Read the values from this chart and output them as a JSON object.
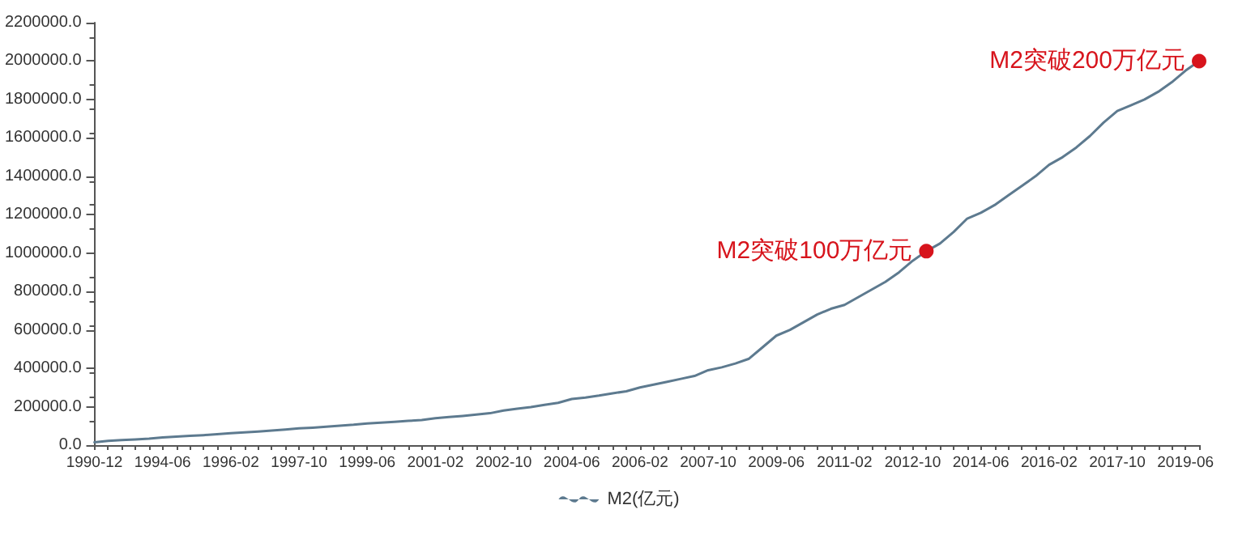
{
  "chart_data": {
    "type": "line",
    "categories": [
      "1990-12",
      null,
      null,
      null,
      null,
      "1994-06",
      null,
      null,
      null,
      null,
      "1996-02",
      null,
      null,
      null,
      null,
      "1997-10",
      null,
      null,
      null,
      null,
      "1999-06",
      null,
      null,
      null,
      null,
      "2001-02",
      null,
      null,
      null,
      null,
      "2002-10",
      null,
      null,
      null,
      null,
      "2004-06",
      null,
      null,
      null,
      null,
      "2006-02",
      null,
      null,
      null,
      null,
      "2007-10",
      null,
      null,
      null,
      null,
      "2009-06",
      null,
      null,
      null,
      null,
      "2011-02",
      null,
      null,
      null,
      null,
      "2012-10",
      null,
      null,
      null,
      null,
      "2014-06",
      null,
      null,
      null,
      null,
      "2016-02",
      null,
      null,
      null,
      null,
      "2017-10",
      null,
      null,
      null,
      null,
      "2019-06",
      null
    ],
    "series": [
      {
        "name": "M2(亿元)",
        "color": "#5d7a8f",
        "values": [
          15000,
          22000,
          26000,
          30000,
          34000,
          40000,
          44000,
          48000,
          52000,
          57000,
          62000,
          66000,
          71000,
          76000,
          81000,
          87000,
          91000,
          96000,
          101000,
          106000,
          113000,
          117000,
          121000,
          126000,
          131000,
          140000,
          146000,
          152000,
          159000,
          166000,
          180000,
          190000,
          198000,
          210000,
          220000,
          240000,
          248000,
          258000,
          270000,
          280000,
          300000,
          315000,
          330000,
          345000,
          360000,
          390000,
          405000,
          425000,
          450000,
          510000,
          570000,
          600000,
          640000,
          680000,
          710000,
          730000,
          770000,
          810000,
          850000,
          900000,
          960000,
          1010000,
          1050000,
          1110000,
          1180000,
          1210000,
          1250000,
          1300000,
          1350000,
          1400000,
          1460000,
          1500000,
          1550000,
          1610000,
          1680000,
          1740000,
          1770000,
          1800000,
          1840000,
          1890000,
          1950000,
          2000000
        ]
      },
      {
        "type": "scatter",
        "color": "#d7141c",
        "marker": "circle",
        "values": [
          null,
          null,
          null,
          null,
          null,
          null,
          null,
          null,
          null,
          null,
          null,
          null,
          null,
          null,
          null,
          null,
          null,
          null,
          null,
          null,
          null,
          null,
          null,
          null,
          null,
          null,
          null,
          null,
          null,
          null,
          null,
          null,
          null,
          null,
          null,
          null,
          null,
          null,
          null,
          null,
          null,
          null,
          null,
          null,
          null,
          null,
          null,
          null,
          null,
          null,
          null,
          null,
          null,
          null,
          null,
          null,
          null,
          null,
          null,
          null,
          null,
          1010000,
          null,
          null,
          null,
          null,
          null,
          null,
          null,
          null,
          null,
          null,
          null,
          null,
          null,
          null,
          null,
          null,
          null,
          null,
          null,
          2000000
        ]
      }
    ],
    "ylim": [
      0,
      2200000
    ],
    "yticks": [
      {
        "value": 0,
        "label": "0.0"
      },
      {
        "value": 200000,
        "label": "200000.0"
      },
      {
        "value": 400000,
        "label": "400000.0"
      },
      {
        "value": 600000,
        "label": "600000.0"
      },
      {
        "value": 800000,
        "label": "800000.0"
      },
      {
        "value": 1000000,
        "label": "1000000.0"
      },
      {
        "value": 1200000,
        "label": "1200000.0"
      },
      {
        "value": 1400000,
        "label": "1400000.0"
      },
      {
        "value": 1600000,
        "label": "1600000.0"
      },
      {
        "value": 1800000,
        "label": "1800000.0"
      },
      {
        "value": 2000000,
        "label": "2000000.0"
      },
      {
        "value": 2200000,
        "label": "2200000.0"
      }
    ],
    "annotations": [
      "M2突破100万亿元",
      "M2突破200万亿元"
    ],
    "legend": "bottom",
    "marker": "none",
    "line_style": "solid",
    "grid": false
  }
}
